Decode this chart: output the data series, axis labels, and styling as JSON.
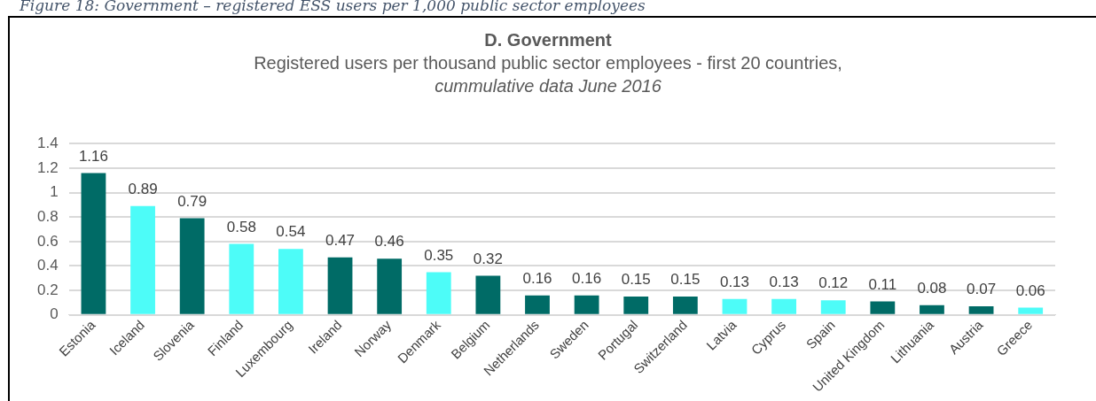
{
  "chart_data": {
    "type": "bar",
    "title": "D. Government",
    "subtitle": "Registered users per thousand public sector employees - first 20 countries,\ncummulative data June 2016",
    "annotations": [
      "Figure 18: Government – registered ESS users per 1,000 public sector employees"
    ],
    "categories": [
      "Estonia",
      "Iceland",
      "Slovenia",
      "Finland",
      "Luxembourg",
      "Ireland",
      "Norway",
      "Denmark",
      "Belgium",
      "Netherlands",
      "Sweden",
      "Portugal",
      "Switzerland",
      "Latvia",
      "Cyprus",
      "Spain",
      "United Kingdom",
      "Lithuania",
      "Austria",
      "Greece"
    ],
    "values": [
      1.16,
      0.89,
      0.79,
      0.58,
      0.54,
      0.47,
      0.46,
      0.35,
      0.32,
      0.16,
      0.16,
      0.15,
      0.15,
      0.13,
      0.13,
      0.12,
      0.11,
      0.08,
      0.07,
      0.06
    ],
    "colors": [
      "#006b66",
      "#4dfcf8",
      "#006b66",
      "#4dfcf8",
      "#4dfcf8",
      "#006b66",
      "#006b66",
      "#4dfcf8",
      "#006b66",
      "#006b66",
      "#006b66",
      "#006b66",
      "#006b66",
      "#4dfcf8",
      "#4dfcf8",
      "#4dfcf8",
      "#006b66",
      "#006b66",
      "#006b66",
      "#4dfcf8"
    ],
    "ylim": [
      0,
      1.4
    ],
    "yticks": [
      0,
      0.2,
      0.4,
      0.6,
      0.8,
      1,
      1.2,
      1.4
    ],
    "grid": "y",
    "data_labels": true,
    "legend": false
  }
}
